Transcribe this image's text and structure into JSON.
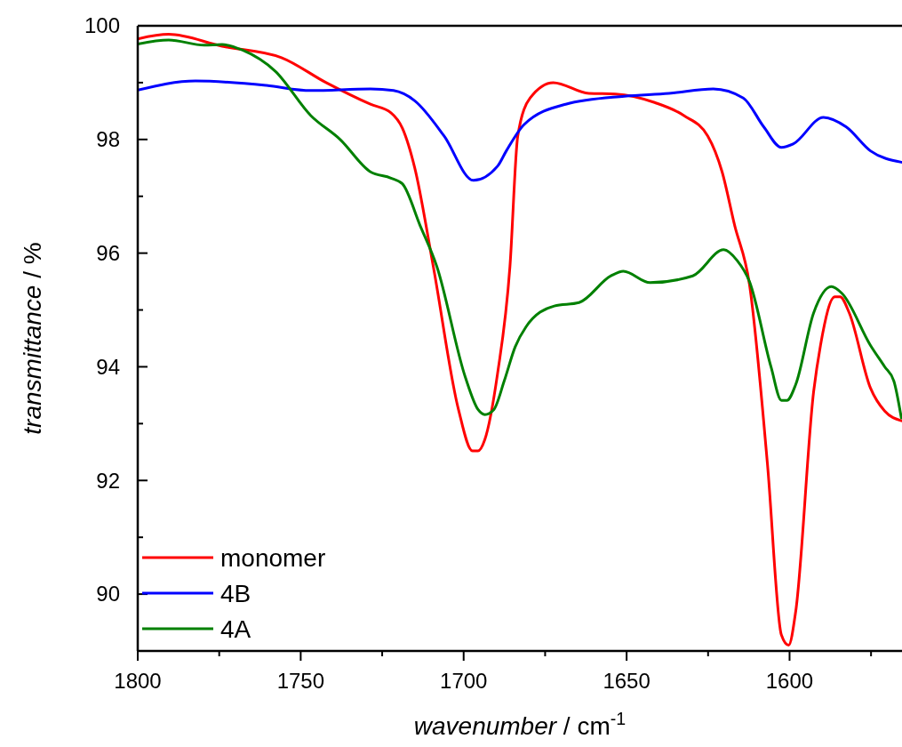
{
  "chart_data": {
    "type": "line",
    "xlabel": "wavenumber / cm$^{-1}$",
    "ylabel": "transmittance / %",
    "xlim": [
      1800,
      1565.5
    ],
    "ylim": [
      89,
      100
    ],
    "xticks": [
      1800,
      {
        "value": 1775,
        "label": null
      },
      1750,
      {
        "value": 1725,
        "label": null
      },
      1700,
      {
        "value": 1675,
        "label": null
      },
      1650,
      {
        "value": 1625,
        "label": null
      },
      1600,
      {
        "value": 1575,
        "label": null
      }
    ],
    "yticks": [
      90,
      {
        "value": 91,
        "label": null
      },
      92,
      {
        "value": 93,
        "label": null
      },
      94,
      {
        "value": 95,
        "label": null
      },
      96,
      {
        "value": 97,
        "label": null
      },
      98,
      {
        "value": 99,
        "label": null
      },
      100
    ],
    "grid": false,
    "legend": "bottom left",
    "marker": "none",
    "line_style": "solid",
    "series": [
      {
        "name": "monomer",
        "color": "#ff0000",
        "x": [
          1800,
          1790.5,
          1774.1,
          1755.9,
          1742.2,
          1728.6,
          1722.3,
          1718.8,
          1715,
          1709.3,
          1701.6,
          1697.3,
          1695.6,
          1693.5,
          1689.6,
          1685.8,
          1683.4,
          1679.6,
          1672.5,
          1661.6,
          1653.4,
          1641.4,
          1632.4,
          1625.1,
          1620.7,
          1616.9,
          1612.3,
          1606.8,
          1602.5,
          1600.3,
          1598.1,
          1592.6,
          1590.5,
          1586.1,
          1584.5,
          1581.7,
          1575.2,
          1570.8,
          1565.7
        ],
        "values": [
          99.77,
          99.85,
          99.64,
          99.44,
          99.0,
          98.62,
          98.47,
          98.2,
          97.5,
          95.76,
          93.25,
          92.52,
          92.52,
          92.72,
          93.88,
          95.76,
          98.06,
          98.73,
          99.0,
          98.81,
          98.8,
          98.65,
          98.42,
          98.06,
          97.43,
          96.5,
          95.45,
          92.3,
          89.28,
          89.1,
          89.7,
          93.57,
          94.38,
          95.23,
          95.23,
          94.95,
          93.63,
          93.22,
          93.05
        ]
      },
      {
        "name": "4B",
        "color": "#0000ff",
        "x": [
          1800,
          1782.3,
          1760.5,
          1746.9,
          1728.6,
          1721.5,
          1715,
          1706,
          1697,
          1689.6,
          1686.9,
          1681.5,
          1668.7,
          1650.7,
          1637,
          1623.4,
          1614.2,
          1607.9,
          1602.5,
          1598.9,
          1589.6,
          1582.6,
          1575.2,
          1565.7
        ],
        "values": [
          98.87,
          99.03,
          98.95,
          98.86,
          98.89,
          98.86,
          98.68,
          98.06,
          97.28,
          97.53,
          97.8,
          98.26,
          98.62,
          98.76,
          98.81,
          98.89,
          98.73,
          98.22,
          97.86,
          97.92,
          98.39,
          98.22,
          97.8,
          97.6
        ]
      },
      {
        "name": "4A",
        "color": "#008000",
        "x": [
          1800,
          1790.5,
          1779.6,
          1774.1,
          1767.8,
          1757.8,
          1746.9,
          1737.9,
          1728.6,
          1722.3,
          1718.8,
          1713.4,
          1708.2,
          1699.5,
          1695.6,
          1693.5,
          1690.7,
          1687.5,
          1684.2,
          1680.9,
          1672.2,
          1664.6,
          1654.8,
          1651,
          1642.8,
          1629.7,
          1620.2,
          1616.1,
          1612.3,
          1605.7,
          1602.5,
          1600.8,
          1598.1,
          1592.6,
          1587.2,
          1583.9,
          1575.2,
          1570.8,
          1568,
          1565.7
        ],
        "values": [
          99.68,
          99.75,
          99.66,
          99.67,
          99.57,
          99.2,
          98.42,
          98.0,
          97.43,
          97.32,
          97.22,
          96.49,
          95.76,
          93.82,
          93.25,
          93.16,
          93.25,
          93.76,
          94.35,
          94.7,
          95.07,
          95.13,
          95.6,
          95.68,
          95.48,
          95.6,
          96.06,
          95.87,
          95.5,
          94.0,
          93.41,
          93.41,
          93.69,
          94.95,
          95.41,
          95.29,
          94.38,
          94.0,
          93.75,
          93.1
        ]
      }
    ]
  }
}
